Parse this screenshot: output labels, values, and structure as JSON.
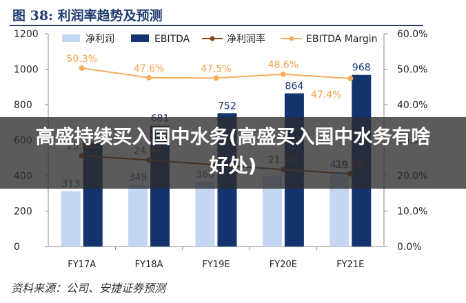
{
  "figure": {
    "title": "图 38: 利润率趋势及预测",
    "source": "资料来源：公司、安捷证券预测"
  },
  "overlay": {
    "headline": "高盛持续买入国中水务(高盛买入国中水务有啥好处)"
  },
  "colors": {
    "net_profit": "#c5d6f2",
    "ebitda": "#13346e",
    "net_margin": "#8b4513",
    "ebitda_margin": "#f5ad5b",
    "title": "#1f3b70"
  },
  "chart_data": {
    "type": "bar",
    "categories": [
      "FY17A",
      "FY18A",
      "FY19E",
      "FY20E",
      "FY21E"
    ],
    "series": [
      {
        "name": "净利润",
        "kind": "bar",
        "axis": "left",
        "values": [
          313,
          349,
          366,
          396,
          419
        ],
        "labels": [
          "313",
          "349",
          "366",
          "",
          "419"
        ]
      },
      {
        "name": "EBITDA",
        "kind": "bar",
        "axis": "left",
        "values": [
          587,
          681,
          752,
          864,
          968
        ],
        "labels": [
          "",
          "681",
          "752",
          "864",
          "968"
        ]
      },
      {
        "name": "净利润率",
        "kind": "line",
        "axis": "right",
        "values": [
          25.6,
          24.4,
          23.0,
          21.7,
          20.5
        ],
        "labels": [
          "25.6%",
          "24.4%",
          "",
          "21.7%",
          "20.5%"
        ]
      },
      {
        "name": "EBITDA Margin",
        "kind": "line",
        "axis": "right",
        "values": [
          50.3,
          47.6,
          47.5,
          48.6,
          47.4
        ],
        "labels": [
          "50.3%",
          "47.6%",
          "47.5%",
          "48.6%",
          "47.4%"
        ]
      }
    ],
    "y_left": {
      "range": [
        0,
        1200
      ],
      "ticks": [
        "0",
        "200",
        "400",
        "600",
        "800",
        "1000",
        "1200"
      ]
    },
    "y_right": {
      "range": [
        0,
        60
      ],
      "ticks": [
        "0.0%",
        "10.0%",
        "20.0%",
        "30.0%",
        "40.0%",
        "50.0%",
        "60.0%"
      ]
    },
    "legend_position": "top",
    "grid": false
  }
}
